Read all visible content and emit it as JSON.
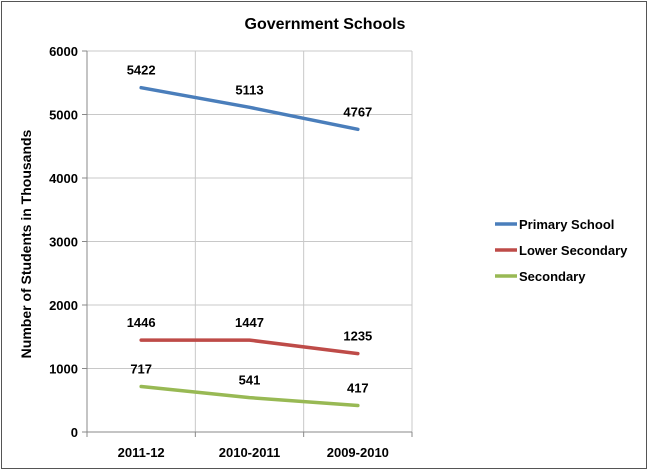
{
  "chart_data": {
    "type": "line",
    "title": "Government Schools",
    "xlabel": "",
    "ylabel": "Number of Students in Thousands",
    "categories": [
      "2011-12",
      "2010-2011",
      "2009-2010"
    ],
    "ylim": [
      0,
      6000
    ],
    "yticks": [
      0,
      1000,
      2000,
      3000,
      4000,
      5000,
      6000
    ],
    "grid": true,
    "legend_position": "right",
    "series": [
      {
        "name": "Primary School",
        "values": [
          5422,
          5113,
          4767
        ],
        "color": "#4a7ebb"
      },
      {
        "name": "Lower Secondary",
        "values": [
          1446,
          1447,
          1235
        ],
        "color": "#be4b48"
      },
      {
        "name": "Secondary",
        "values": [
          717,
          541,
          417
        ],
        "color": "#98b954"
      }
    ]
  }
}
